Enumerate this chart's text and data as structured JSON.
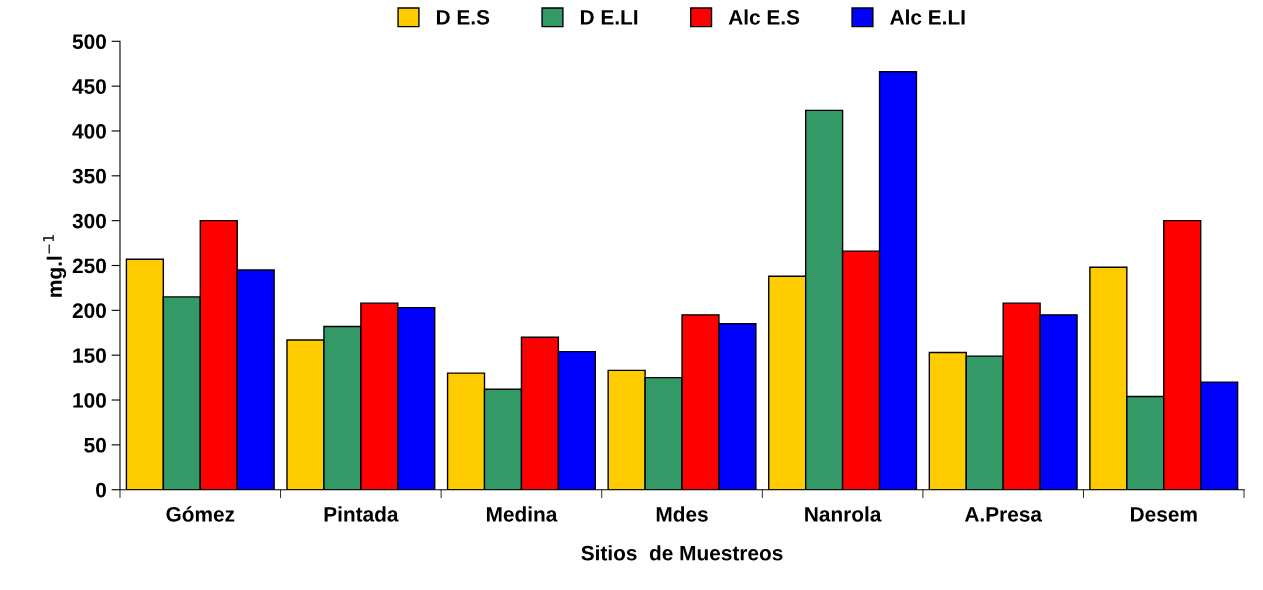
{
  "chart_data": {
    "type": "bar",
    "xlabel": "Sitios  de Muestreos",
    "ylabel": "mg.l$^{−1}$",
    "categories": [
      "Gómez",
      "Pintada",
      "Medina",
      "Mdes",
      "Nanrola",
      "A.Presa",
      "Desem"
    ],
    "series": [
      {
        "name": "D E.S",
        "color": "#ffcc00",
        "values": [
          257,
          167,
          130,
          133,
          238,
          153,
          248
        ]
      },
      {
        "name": "D E.LI",
        "color": "#339966",
        "values": [
          215,
          182,
          112,
          125,
          423,
          149,
          104
        ]
      },
      {
        "name": "Alc E.S",
        "color": "#ff0000",
        "values": [
          300,
          208,
          170,
          195,
          266,
          208,
          300
        ]
      },
      {
        "name": "Alc E.LI",
        "color": "#0000ff",
        "values": [
          245,
          203,
          154,
          185,
          466,
          195,
          120
        ]
      }
    ],
    "ylim": [
      0,
      500
    ],
    "yticks": [
      0,
      50,
      100,
      150,
      200,
      250,
      300,
      350,
      400,
      450,
      500
    ],
    "grid": false,
    "legend": "top"
  }
}
